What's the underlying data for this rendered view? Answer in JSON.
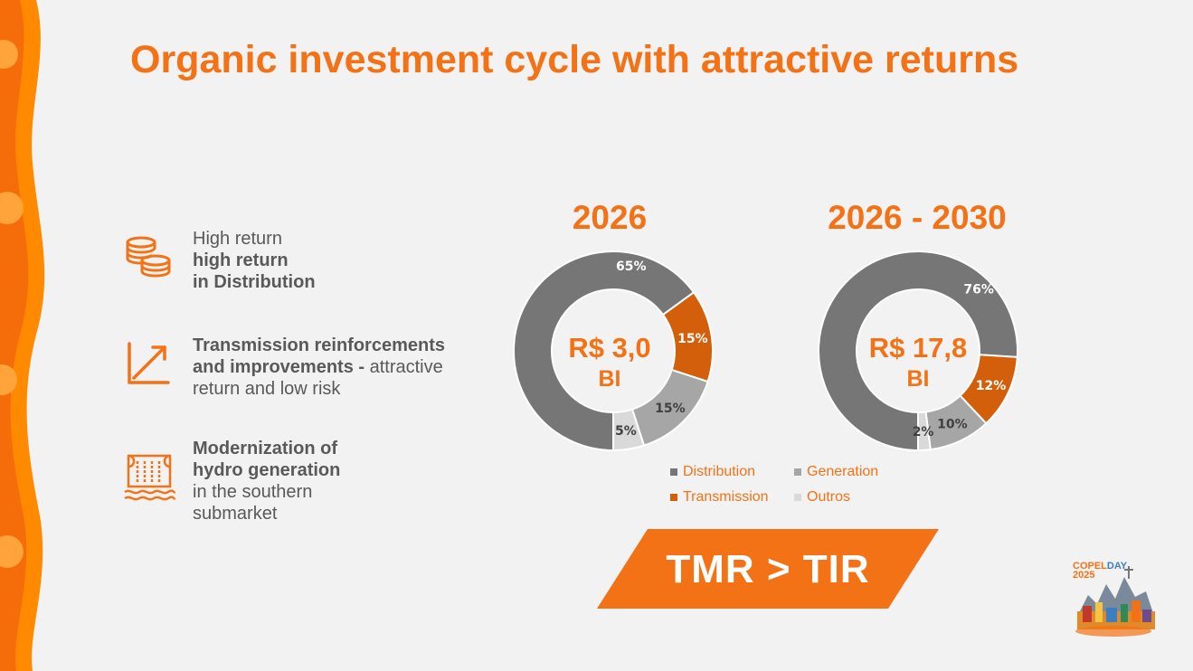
{
  "title": "Organic investment cycle with attractive returns",
  "colors": {
    "accent": "#f47216",
    "distribution": "#767676",
    "generation": "#a6a6a6",
    "transmission": "#d45f0a",
    "outros": "#d9d9d9",
    "text": "#595959"
  },
  "bullets": [
    {
      "icon": "coins-icon",
      "line1": "High return",
      "line2": "high return",
      "line3": "in Distribution"
    },
    {
      "icon": "growth-arrow-icon",
      "line1": "Transmission reinforcements",
      "line2_bold": "and improvements -",
      "line2_rest": " attractive",
      "line3": "return and low risk"
    },
    {
      "icon": "hydro-dam-icon",
      "line1": "Modernization of",
      "line2": "hydro generation",
      "line3": "in the southern",
      "line4": "submarket"
    }
  ],
  "chart_data": [
    {
      "type": "pie",
      "title": "2026",
      "center_amount": "R$ 3,0",
      "center_unit": "BI",
      "categories": [
        "Distribution",
        "Transmission",
        "Generation",
        "Outros"
      ],
      "values": [
        65,
        15,
        15,
        5
      ],
      "labels": [
        "65%",
        "15%",
        "15%",
        "5%"
      ]
    },
    {
      "type": "pie",
      "title": "2026 - 2030",
      "center_amount": "R$ 17,8",
      "center_unit": "BI",
      "categories": [
        "Distribution",
        "Transmission",
        "Generation",
        "Outros"
      ],
      "values": [
        76,
        12,
        10,
        2
      ],
      "labels": [
        "76%",
        "12%",
        "10%",
        "2%"
      ]
    }
  ],
  "legend": [
    "Distribution",
    "Generation",
    "Transmission",
    "Outros"
  ],
  "banner": "TMR > TIR",
  "logo": {
    "brand": "COPEL",
    "day": "DAY",
    "year": "2025"
  }
}
